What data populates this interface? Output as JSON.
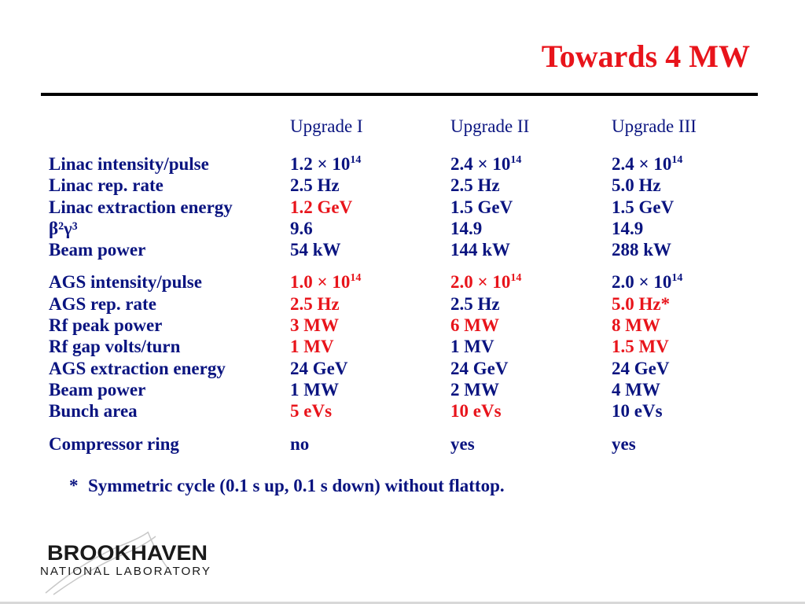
{
  "title": "Towards 4 MW",
  "headers": [
    "",
    "Upgrade I",
    "Upgrade II",
    "Upgrade III"
  ],
  "groups": [
    [
      {
        "label": "Linac intensity/pulse",
        "values": [
          {
            "base": "1.2 × 10",
            "exp": "14"
          },
          {
            "base": "2.4 × 10",
            "exp": "14"
          },
          {
            "base": "2.4 × 10",
            "exp": "14"
          }
        ]
      },
      {
        "label": "Linac rep. rate",
        "values": [
          {
            "base": "2.5 Hz"
          },
          {
            "base": "2.5 Hz"
          },
          {
            "base": "5.0 Hz"
          }
        ]
      },
      {
        "label": "Linac extraction energy",
        "values": [
          {
            "base": "1.2 GeV",
            "red": true
          },
          {
            "base": "1.5 GeV"
          },
          {
            "base": "1.5 GeV"
          }
        ]
      },
      {
        "label": "β²γ³",
        "values": [
          {
            "base": "9.6"
          },
          {
            "base": "14.9"
          },
          {
            "base": "14.9"
          }
        ]
      },
      {
        "label": "Beam power",
        "values": [
          {
            "base": "54 kW"
          },
          {
            "base": "144 kW"
          },
          {
            "base": "288 kW"
          }
        ]
      }
    ],
    [
      {
        "label": "AGS intensity/pulse",
        "values": [
          {
            "base": "1.0 × 10",
            "exp": "14",
            "red": true
          },
          {
            "base": "2.0 × 10",
            "exp": "14",
            "red": true
          },
          {
            "base": "2.0 × 10",
            "exp": "14"
          }
        ]
      },
      {
        "label": "AGS rep. rate",
        "values": [
          {
            "base": "2.5 Hz",
            "red": true
          },
          {
            "base": "2.5 Hz"
          },
          {
            "base": "5.0 Hz*",
            "red": true
          }
        ]
      },
      {
        "label": "Rf peak power",
        "values": [
          {
            "base": "3 MW",
            "red": true
          },
          {
            "base": "6 MW",
            "red": true
          },
          {
            "base": "8 MW",
            "red": true
          }
        ]
      },
      {
        "label": "Rf gap volts/turn",
        "values": [
          {
            "base": "1 MV",
            "red": true
          },
          {
            "base": "1 MV"
          },
          {
            "base": "1.5 MV",
            "red": true
          }
        ]
      },
      {
        "label": "AGS extraction energy",
        "values": [
          {
            "base": "24 GeV"
          },
          {
            "base": "24 GeV"
          },
          {
            "base": "24 GeV"
          }
        ]
      },
      {
        "label": "Beam power",
        "values": [
          {
            "base": "1 MW"
          },
          {
            "base": "2 MW"
          },
          {
            "base": "4 MW"
          }
        ]
      },
      {
        "label": "Bunch area",
        "values": [
          {
            "base": "5 eVs",
            "red": true
          },
          {
            "base": "10 eVs",
            "red": true
          },
          {
            "base": "10 eVs"
          }
        ]
      }
    ],
    [
      {
        "label": "Compressor ring",
        "values": [
          {
            "base": "no"
          },
          {
            "base": "yes"
          },
          {
            "base": "yes"
          }
        ]
      }
    ]
  ],
  "note": {
    "marker": "*",
    "text": "Symmetric cycle (0.1 s up, 0.1 s down) without flattop."
  },
  "logo": {
    "line1": "BROOKHAVEN",
    "line2": "NATIONAL LABORATORY"
  },
  "colors": {
    "title": "#e8141b",
    "text": "#0a1480",
    "highlight": "#e8141b",
    "rule": "#000000"
  }
}
